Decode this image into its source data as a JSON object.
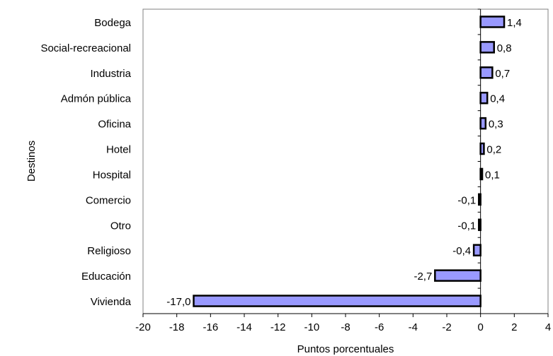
{
  "chart_data": {
    "type": "bar",
    "orientation": "horizontal",
    "categories": [
      "Bodega",
      "Social-recreacional",
      "Industria",
      "Admón pública",
      "Oficina",
      "Hotel",
      "Hospital",
      "Comercio",
      "Otro ",
      "Religioso",
      "Educación",
      "Vivienda"
    ],
    "values": [
      1.4,
      0.8,
      0.7,
      0.4,
      0.3,
      0.2,
      0.1,
      -0.1,
      -0.1,
      -0.4,
      -2.7,
      -17.0
    ],
    "value_labels": [
      "1,4",
      "0,8",
      "0,7",
      "0,4",
      "0,3",
      "0,2",
      "0,1",
      "-0,1",
      "-0,1",
      "-0,4",
      "-2,7",
      "-17,0"
    ],
    "xlabel": "Puntos porcentuales",
    "ylabel": "Destinos",
    "xlim": [
      -20,
      4
    ],
    "xticks": [
      -20,
      -18,
      -16,
      -14,
      -12,
      -10,
      -8,
      -6,
      -4,
      -2,
      0,
      2,
      4
    ],
    "grid": false,
    "legend": "none",
    "bar_color": "#9999ff",
    "bar_edge_color": "#000000"
  }
}
